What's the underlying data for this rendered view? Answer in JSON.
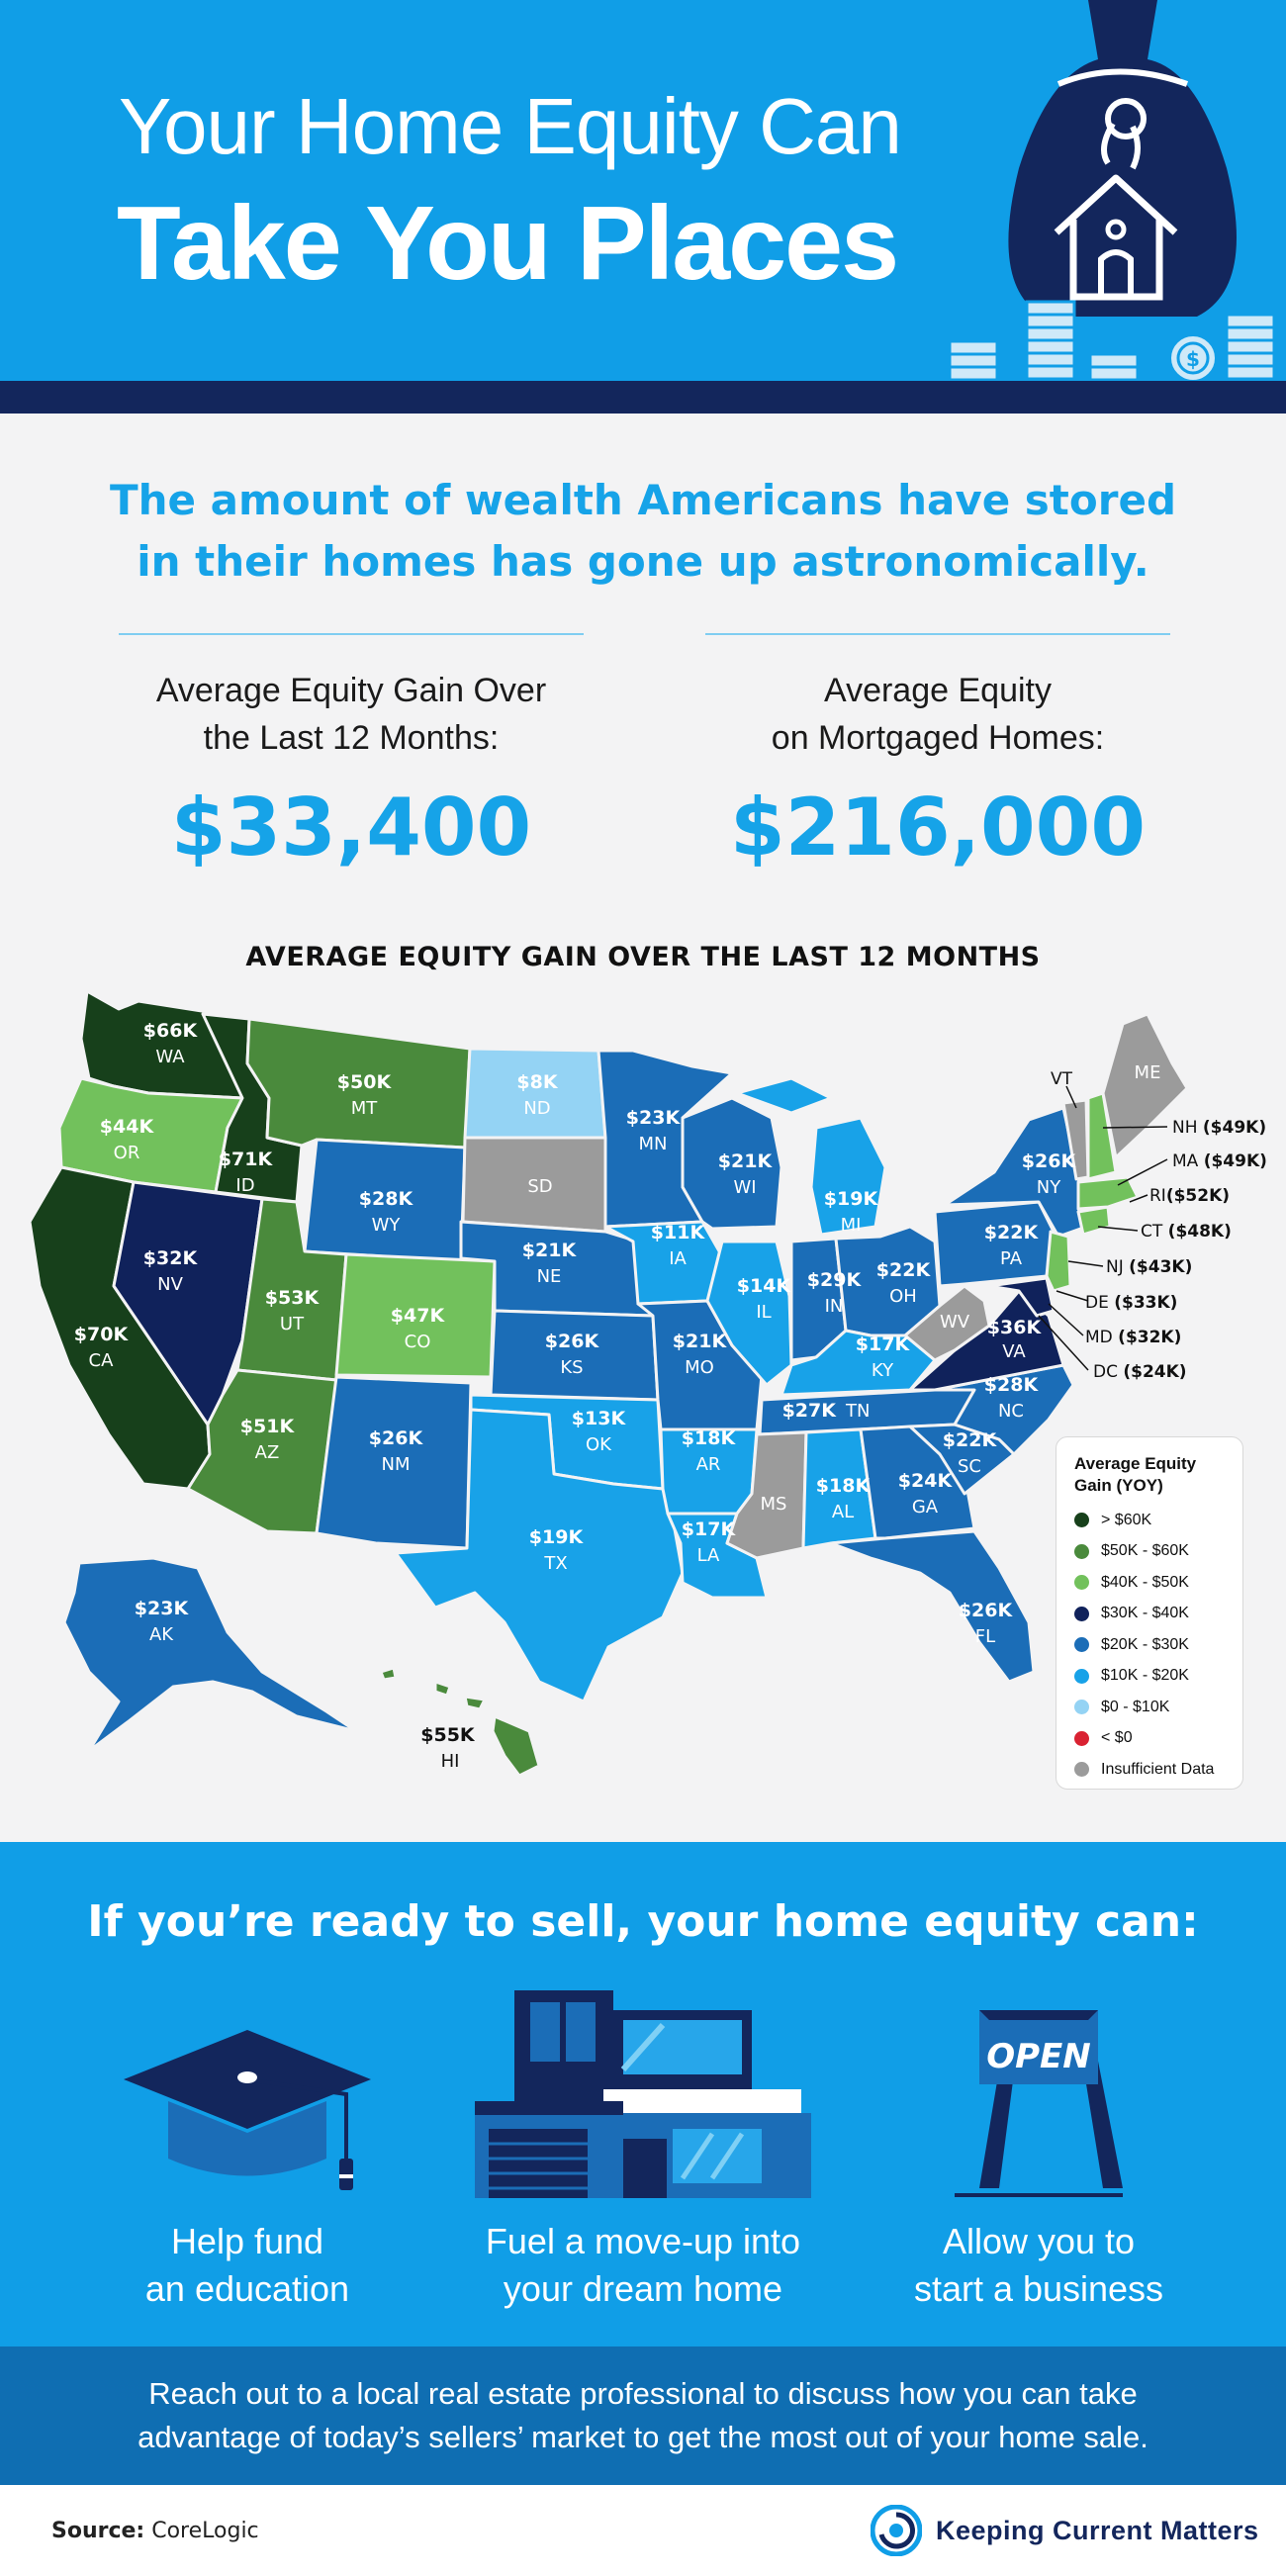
{
  "header": {
    "title_line1": "Your Home Equity Can",
    "title_line2": "Take You Places",
    "colors": {
      "background": "#109ee7",
      "band": "#13265c"
    }
  },
  "intro": {
    "line1": "The amount of wealth Americans have stored",
    "line2": "in their homes has gone up astronomically."
  },
  "stats": [
    {
      "label_line1": "Average Equity Gain Over",
      "label_line2": "the Last 12 Months:",
      "value": "$33,400"
    },
    {
      "label_line1": "Average Equity",
      "label_line2": "on Mortgaged Homes:",
      "value": "$216,000"
    }
  ],
  "map": {
    "title": "AVERAGE EQUITY GAIN OVER THE LAST 12 MONTHS",
    "legend": {
      "title_line1": "Average Equity",
      "title_line2": "Gain (YOY)",
      "items": [
        {
          "label": "> $60K",
          "color": "#17401b"
        },
        {
          "label": "$50K - $60K",
          "color": "#4a8a3c"
        },
        {
          "label": "$40K - $50K",
          "color": "#72c15c"
        },
        {
          "label": "$30K - $40K",
          "color": "#10225b"
        },
        {
          "label": "$20K - $30K",
          "color": "#1b6db7"
        },
        {
          "label": "$10K - $20K",
          "color": "#18a2e8"
        },
        {
          "label": "$0 - $10K",
          "color": "#94d3f4"
        },
        {
          "label": "< $0",
          "color": "#d92232"
        },
        {
          "label": "Insufficient Data",
          "color": "#9b9b9b"
        }
      ]
    },
    "states": {
      "WA": {
        "value": "$66K",
        "abbr": "WA"
      },
      "OR": {
        "value": "$44K",
        "abbr": "OR"
      },
      "CA": {
        "value": "$70K",
        "abbr": "CA"
      },
      "ID": {
        "value": "$71K",
        "abbr": "ID"
      },
      "NV": {
        "value": "$32K",
        "abbr": "NV"
      },
      "MT": {
        "value": "$50K",
        "abbr": "MT"
      },
      "WY": {
        "value": "$28K",
        "abbr": "WY"
      },
      "UT": {
        "value": "$53K",
        "abbr": "UT"
      },
      "CO": {
        "value": "$47K",
        "abbr": "CO"
      },
      "AZ": {
        "value": "$51K",
        "abbr": "AZ"
      },
      "NM": {
        "value": "$26K",
        "abbr": "NM"
      },
      "ND": {
        "value": "$8K",
        "abbr": "ND"
      },
      "SD": {
        "value": "",
        "abbr": "SD"
      },
      "NE": {
        "value": "$21K",
        "abbr": "NE"
      },
      "KS": {
        "value": "$26K",
        "abbr": "KS"
      },
      "OK": {
        "value": "$13K",
        "abbr": "OK"
      },
      "TX": {
        "value": "$19K",
        "abbr": "TX"
      },
      "MN": {
        "value": "$23K",
        "abbr": "MN"
      },
      "IA": {
        "value": "$11K",
        "abbr": "IA"
      },
      "MO": {
        "value": "$21K",
        "abbr": "MO"
      },
      "AR": {
        "value": "$18K",
        "abbr": "AR"
      },
      "LA": {
        "value": "$17K",
        "abbr": "LA"
      },
      "WI": {
        "value": "$21K",
        "abbr": "WI"
      },
      "IL": {
        "value": "$14K",
        "abbr": "IL"
      },
      "MI": {
        "value": "$19K",
        "abbr": "MI"
      },
      "IN": {
        "value": "$29K",
        "abbr": "IN"
      },
      "OH": {
        "value": "$22K",
        "abbr": "OH"
      },
      "KY": {
        "value": "$17K",
        "abbr": "KY"
      },
      "TN": {
        "value": "$27K",
        "abbr": "TN"
      },
      "MS": {
        "value": "",
        "abbr": "MS"
      },
      "AL": {
        "value": "$18K",
        "abbr": "AL"
      },
      "GA": {
        "value": "$24K",
        "abbr": "GA"
      },
      "FL": {
        "value": "$26K",
        "abbr": "FL"
      },
      "SC": {
        "value": "$22K",
        "abbr": "SC"
      },
      "NC": {
        "value": "$28K",
        "abbr": "NC"
      },
      "VA": {
        "value": "$36K",
        "abbr": "VA"
      },
      "WV": {
        "value": "",
        "abbr": "WV"
      },
      "PA": {
        "value": "$22K",
        "abbr": "PA"
      },
      "NY": {
        "value": "$26K",
        "abbr": "NY"
      },
      "ME": {
        "value": "",
        "abbr": "ME"
      },
      "AK": {
        "value": "$23K",
        "abbr": "AK"
      },
      "HI": {
        "value": "$55K",
        "abbr": "HI"
      }
    },
    "callouts": {
      "VT": "VT",
      "NH": {
        "abbr": "NH",
        "value": "($49K)"
      },
      "MA": {
        "abbr": "MA",
        "value": "($49K)"
      },
      "RI": {
        "abbr": "RI",
        "value": "($52K)"
      },
      "CT": {
        "abbr": "CT",
        "value": "($48K)"
      },
      "NJ": {
        "abbr": "NJ",
        "value": "($43K)"
      },
      "DE": {
        "abbr": "DE",
        "value": "($33K)"
      },
      "MD": {
        "abbr": "MD",
        "value": "($32K)"
      },
      "DC": {
        "abbr": "DC",
        "value": "($24K)"
      }
    }
  },
  "benefits": {
    "heading": "If you’re ready to sell, your home equity can:",
    "items": [
      {
        "line1": "Help fund",
        "line2": "an education",
        "icon": "graduation-cap-icon"
      },
      {
        "line1": "Fuel a move-up into",
        "line2": "your dream home",
        "icon": "house-icon"
      },
      {
        "line1": "Allow you to",
        "line2": "start a business",
        "icon": "open-sign-icon",
        "sign_text": "OPEN"
      }
    ]
  },
  "cta": {
    "line1": "Reach out to a local real estate professional to discuss how you can take",
    "line2": "advantage of today’s sellers’ market to get the most out of your home sale."
  },
  "footer": {
    "source_label": "Source:",
    "source_value": "CoreLogic",
    "brand": "Keeping Current Matters"
  }
}
